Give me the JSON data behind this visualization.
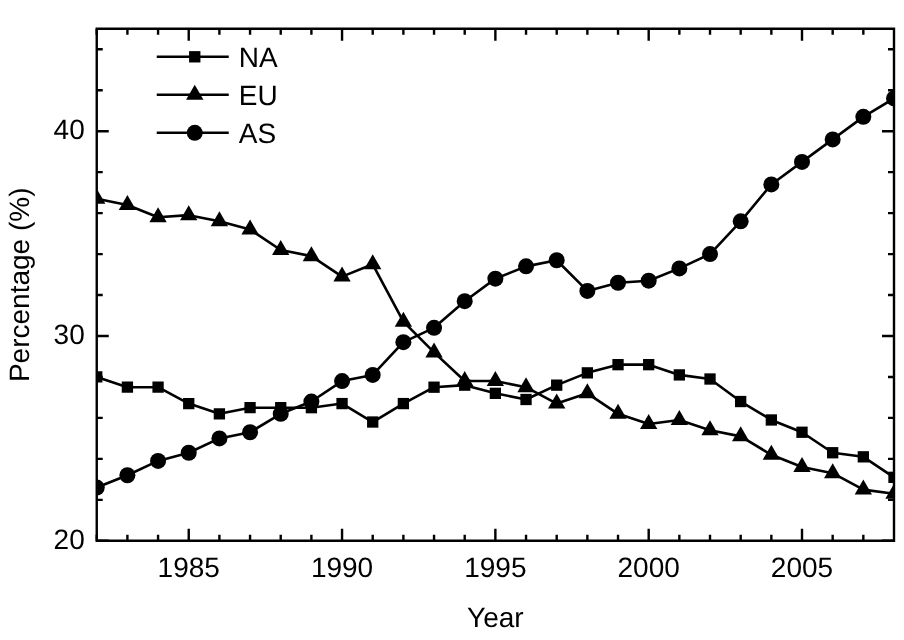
{
  "chart_data": {
    "type": "line",
    "xlabel": "Year",
    "ylabel": "Percentage (%)",
    "x": [
      1982,
      1983,
      1984,
      1985,
      1986,
      1987,
      1988,
      1989,
      1990,
      1991,
      1992,
      1993,
      1994,
      1995,
      1996,
      1997,
      1998,
      1999,
      2000,
      2001,
      2002,
      2003,
      2004,
      2005,
      2006,
      2007,
      2008
    ],
    "xlim": [
      1982,
      2008
    ],
    "xticks": [
      {
        "value": 1982,
        "label": null
      },
      {
        "value": 1983,
        "label": null
      },
      {
        "value": 1984,
        "label": null
      },
      1985,
      {
        "value": 1986,
        "label": null
      },
      {
        "value": 1987,
        "label": null
      },
      {
        "value": 1988,
        "label": null
      },
      {
        "value": 1989,
        "label": null
      },
      1990,
      {
        "value": 1991,
        "label": null
      },
      {
        "value": 1992,
        "label": null
      },
      {
        "value": 1993,
        "label": null
      },
      {
        "value": 1994,
        "label": null
      },
      1995,
      {
        "value": 1996,
        "label": null
      },
      {
        "value": 1997,
        "label": null
      },
      {
        "value": 1998,
        "label": null
      },
      {
        "value": 1999,
        "label": null
      },
      2000,
      {
        "value": 2001,
        "label": null
      },
      {
        "value": 2002,
        "label": null
      },
      {
        "value": 2003,
        "label": null
      },
      {
        "value": 2004,
        "label": null
      },
      2005,
      {
        "value": 2006,
        "label": null
      },
      {
        "value": 2007,
        "label": null
      }
    ],
    "ylim": [
      20,
      45
    ],
    "yticks": [
      20,
      {
        "value": 22,
        "label": null
      },
      {
        "value": 24,
        "label": null
      },
      {
        "value": 26,
        "label": null
      },
      {
        "value": 28,
        "label": null
      },
      30,
      {
        "value": 32,
        "label": null
      },
      {
        "value": 34,
        "label": null
      },
      {
        "value": 36,
        "label": null
      },
      {
        "value": 38,
        "label": null
      },
      40,
      {
        "value": 42,
        "label": null
      },
      {
        "value": 44,
        "label": null
      }
    ],
    "grid": false,
    "legend": "top left",
    "line_style": "solid",
    "series": [
      {
        "name": "NA",
        "color": "#000000",
        "marker": "square",
        "values": [
          28.0,
          27.5,
          27.5,
          26.7,
          26.2,
          26.5,
          26.5,
          26.5,
          26.7,
          25.8,
          26.7,
          27.5,
          27.6,
          27.2,
          26.9,
          27.6,
          28.2,
          28.6,
          28.6,
          28.1,
          27.9,
          26.8,
          25.9,
          25.3,
          24.3,
          24.1,
          23.1
        ]
      },
      {
        "name": "EU",
        "color": "#000000",
        "marker": "triangle",
        "values": [
          36.7,
          36.4,
          35.8,
          35.9,
          35.6,
          35.2,
          34.2,
          33.9,
          32.9,
          33.5,
          30.7,
          29.2,
          27.8,
          27.8,
          27.5,
          26.7,
          27.2,
          26.2,
          25.7,
          25.9,
          25.4,
          25.1,
          24.2,
          23.6,
          23.3,
          22.5,
          22.3
        ]
      },
      {
        "name": "AS",
        "color": "#000000",
        "marker": "circle",
        "values": [
          22.6,
          23.2,
          23.9,
          24.3,
          25.0,
          25.3,
          26.2,
          26.8,
          27.8,
          28.1,
          29.7,
          30.4,
          31.7,
          32.8,
          33.4,
          33.7,
          32.2,
          32.6,
          32.7,
          33.3,
          34.0,
          35.6,
          37.4,
          38.5,
          39.6,
          40.7,
          41.6
        ]
      }
    ]
  }
}
